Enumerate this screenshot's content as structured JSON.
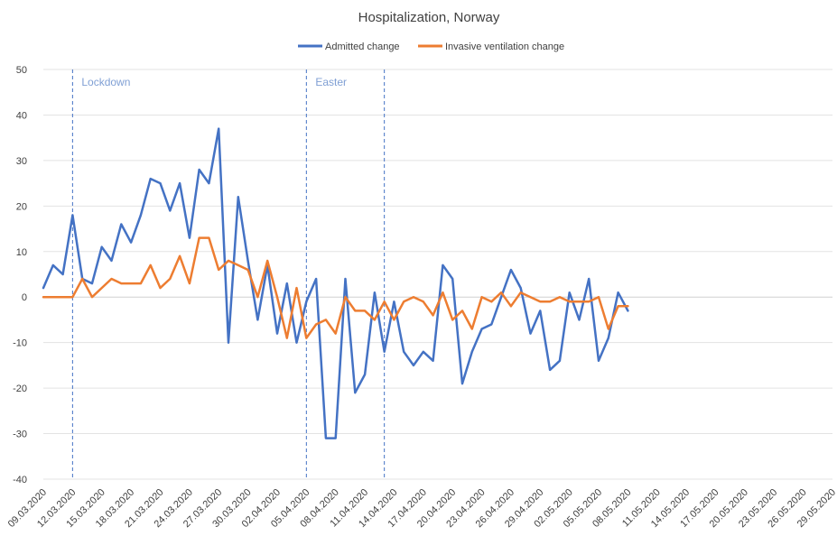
{
  "chart_data": {
    "type": "line",
    "title": "Hospitalization, Norway",
    "xlabel": "",
    "ylabel": "",
    "ylim": [
      -40,
      50
    ],
    "yticks": [
      50,
      40,
      30,
      20,
      10,
      0,
      -10,
      -20,
      -30,
      -40
    ],
    "grid": true,
    "legend_position": "top-center",
    "x_start": "09.03.2020",
    "x_tick_labels": [
      "09.03.2020",
      "12.03.2020",
      "15.03.2020",
      "18.03.2020",
      "21.03.2020",
      "24.03.2020",
      "27.03.2020",
      "30.03.2020",
      "02.04.2020",
      "05.04.2020",
      "08.04.2020",
      "11.04.2020",
      "14.04.2020",
      "17.04.2020",
      "20.04.2020",
      "23.04.2020",
      "26.04.2020",
      "29.04.2020",
      "02.05.2020",
      "05.05.2020",
      "08.05.2020",
      "11.05.2020",
      "14.05.2020",
      "17.05.2020",
      "20.05.2020",
      "23.05.2020",
      "26.05.2020",
      "29.05.2020"
    ],
    "x_tick_step_days": 3,
    "x_axis_days": 81,
    "series": [
      {
        "name": "Admitted change",
        "color": "#4472c4",
        "values": [
          2,
          7,
          5,
          18,
          4,
          3,
          11,
          8,
          16,
          12,
          18,
          26,
          25,
          19,
          25,
          13,
          28,
          25,
          37,
          -10,
          22,
          8,
          -5,
          7,
          -8,
          3,
          -10,
          -1,
          4,
          -31,
          -31,
          4,
          -21,
          -17,
          1,
          -12,
          -1,
          -12,
          -15,
          -12,
          -14,
          7,
          4,
          -19,
          -12,
          -7,
          -6,
          0,
          6,
          2,
          -8,
          -3,
          -16,
          -14,
          1,
          -5,
          4,
          -14,
          -9,
          1,
          -3
        ]
      },
      {
        "name": "Invasive ventilation change",
        "color": "#ed7d31",
        "values": [
          0,
          0,
          0,
          0,
          4,
          0,
          2,
          4,
          3,
          3,
          3,
          7,
          2,
          4,
          9,
          3,
          13,
          13,
          6,
          8,
          7,
          6,
          0,
          8,
          0,
          -9,
          2,
          -9,
          -6,
          -5,
          -8,
          0,
          -3,
          -3,
          -5,
          -1,
          -5,
          -1,
          0,
          -1,
          -4,
          1,
          -5,
          -3,
          -7,
          0,
          -1,
          1,
          -2,
          1,
          0,
          -1,
          -1,
          0,
          -1,
          -1,
          -1,
          0,
          -7,
          -2,
          -2
        ]
      }
    ],
    "annotations": [
      {
        "label": "Lockdown",
        "date": "12.03.2020",
        "day_index": 3
      },
      {
        "label": "Easter",
        "date": "05.04.2020",
        "day_index": 27
      },
      {
        "label": "",
        "date": "13.04.2020",
        "day_index": 35
      }
    ]
  }
}
